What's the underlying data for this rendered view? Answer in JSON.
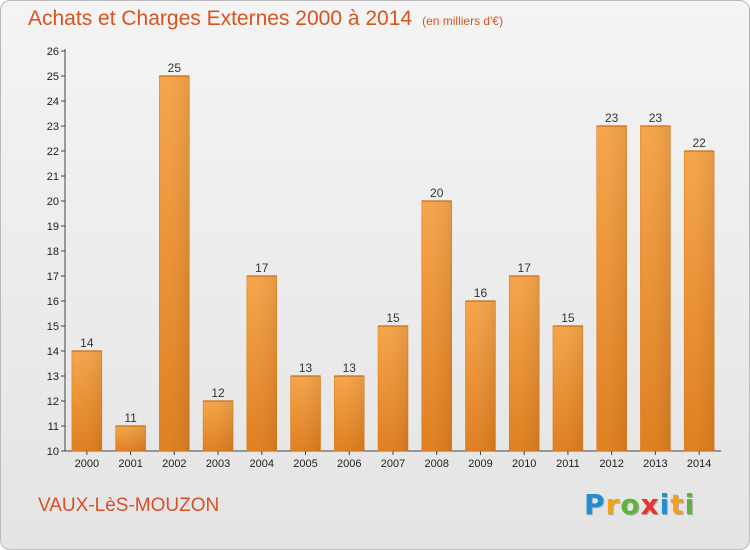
{
  "header": {
    "title": "Achats et Charges Externes 2000 à 2014",
    "unit": "(en milliers d'€)"
  },
  "footer": {
    "city": "VAUX-LèS-MOUZON",
    "logo_letters": [
      "P",
      "r",
      "o",
      "x",
      "i",
      "t",
      "i"
    ],
    "logo_colors": [
      "#1e8fd6",
      "#f4a11b",
      "#5fb33b",
      "#e8332e",
      "#1e8fd6",
      "#f4a11b",
      "#5fb33b"
    ]
  },
  "colors": {
    "bar_light": "#f6a54a",
    "bar_dark": "#e07f1f",
    "title": "#d9531e"
  },
  "chart_data": {
    "type": "bar",
    "categories": [
      "2000",
      "2001",
      "2002",
      "2003",
      "2004",
      "2005",
      "2006",
      "2007",
      "2008",
      "2009",
      "2010",
      "2011",
      "2012",
      "2013",
      "2014"
    ],
    "values": [
      14,
      11,
      25,
      12,
      17,
      13,
      13,
      15,
      20,
      16,
      17,
      15,
      23,
      23,
      22
    ],
    "ylim": [
      10,
      26
    ],
    "yticks": [
      "10",
      "11",
      "12",
      "13",
      "14",
      "15",
      "16",
      "17",
      "18",
      "19",
      "20",
      "21",
      "22",
      "23",
      "24",
      "25",
      "26"
    ],
    "grid": false,
    "data_labels": true
  }
}
